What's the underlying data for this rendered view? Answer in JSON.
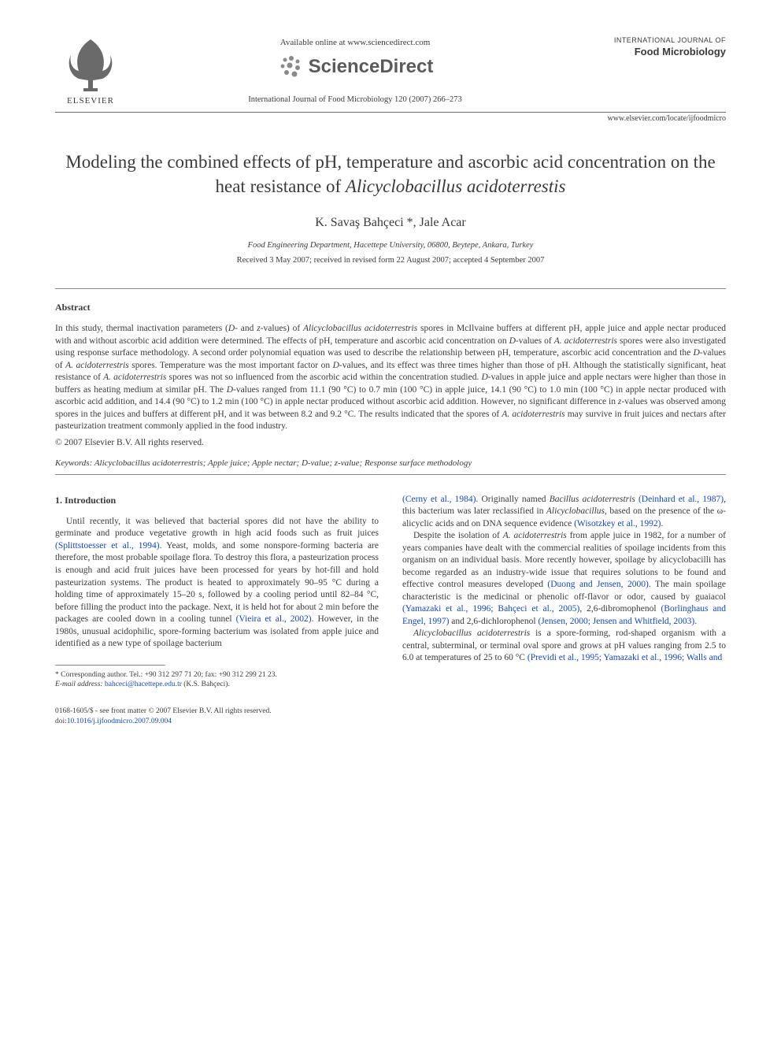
{
  "header": {
    "elsevier_label": "ELSEVIER",
    "available_online": "Available online at www.sciencedirect.com",
    "scidir_text": "ScienceDirect",
    "journal_ref": "International Journal of Food Microbiology 120 (2007) 266–273",
    "journal_brand_line1": "INTERNATIONAL JOURNAL OF",
    "journal_brand_line2": "Food Microbiology",
    "locate_link": "www.elsevier.com/locate/ijfoodmicro"
  },
  "title_html": "Modeling the combined effects of pH, temperature and ascorbic acid concentration on the heat resistance of <em>Alicyclobacillus acidoterrestis</em>",
  "authors": "K. Savaş Bahçeci *, Jale Acar",
  "affiliation": "Food Engineering Department, Hacettepe University, 06800, Beytepe, Ankara, Turkey",
  "dates": "Received 3 May 2007; received in revised form 22 August 2007; accepted 4 September 2007",
  "abstract": {
    "heading": "Abstract",
    "body_html": "In this study, thermal inactivation parameters (<em>D</em>- and <em>z</em>-values) of <em>Alicyclobacillus acidoterrestris</em> spores in McIlvaine buffers at different pH, apple juice and apple nectar produced with and without ascorbic acid addition were determined. The effects of pH, temperature and ascorbic acid concentration on <em>D</em>-values of <em>A. acidoterrestris</em> spores were also investigated using response surface methodology. A second order polynomial equation was used to describe the relationship between pH, temperature, ascorbic acid concentration and the <em>D</em>-values of <em>A. acidoterrestris</em> spores. Temperature was the most important factor on <em>D</em>-values, and its effect was three times higher than those of pH. Although the statistically significant, heat resistance of <em>A. acidoterrestris</em> spores was not so influenced from the ascorbic acid within the concentration studied. <em>D</em>-values in apple juice and apple nectars were higher than those in buffers as heating medium at similar pH. The <em>D</em>-values ranged from 11.1 (90 °C) to 0.7 min (100 °C) in apple juice, 14.1 (90 °C) to 1.0 min (100 °C) in apple nectar produced with ascorbic acid addition, and 14.4 (90 °C) to 1.2 min (100 °C) in apple nectar produced without ascorbic acid addition. However, no significant difference in <em>z</em>-values was observed among spores in the juices and buffers at different pH, and it was between 8.2 and 9.2 °C. The results indicated that the spores of <em>A. acidoterrestris</em> may survive in fruit juices and nectars after pasteurization treatment commonly applied in the food industry.",
    "copyright": "© 2007 Elsevier B.V. All rights reserved.",
    "keywords_label": "Keywords:",
    "keywords_list": "Alicyclobacillus acidoterrestris; Apple juice; Apple nectar; D-value; z-value; Response surface methodology"
  },
  "intro": {
    "heading": "1. Introduction",
    "col1_p1_html": "Until recently, it was believed that bacterial spores did not have the ability to germinate and produce vegetative growth in high acid foods such as fruit juices <span class=\"ref-link\">(Splittstoesser et al., 1994)</span>. Yeast, molds, and some nonspore-forming bacteria are therefore, the most probable spoilage flora. To destroy this flora, a pasteurization process is enough and acid fruit juices have been processed for years by hot-fill and hold pasteurization systems. The product is heated to approximately 90–95 °C during a holding time of approximately 15–20 s, followed by a cooling period until 82–84 °C, before filling the product into the package. Next, it is held hot for about 2 min before the packages are cooled down in a cooling tunnel <span class=\"ref-link\">(Vieira et al., 2002)</span>. However, in the 1980s, unusual acidophilic, spore-forming bacterium was isolated from apple juice and identified as a new type of spoilage bacterium",
    "col2_p1_html": "<span class=\"ref-link\">(Cerny et al., 1984)</span>. Originally named <em>Bacillus acidoterrestris</em> <span class=\"ref-link\">(Deinhard et al., 1987)</span>, this bacterium was later reclassified in <em>Alicyclobacillus</em>, based on the presence of the ω-alicyclic acids and on DNA sequence evidence <span class=\"ref-link\">(Wisotzkey et al., 1992)</span>.",
    "col2_p2_html": "Despite the isolation of <em>A. acidoterrestris</em> from apple juice in 1982, for a number of years companies have dealt with the commercial realities of spoilage incidents from this organism on an individual basis. More recently however, spoilage by alicyclobacilli has become regarded as an industry-wide issue that requires solutions to be found and effective control measures developed <span class=\"ref-link\">(Duong and Jensen, 2000)</span>. The main spoilage characteristic is the medicinal or phenolic off-flavor or odor, caused by guaiacol <span class=\"ref-link\">(Yamazaki et al., 1996; Bahçeci et al., 2005)</span>, 2,6-dibromophenol <span class=\"ref-link\">(Borlinghaus and Engel, 1997)</span> and 2,6-dichlorophenol <span class=\"ref-link\">(Jensen, 2000; Jensen and Whitfield, 2003)</span>.",
    "col2_p3_html": "<em>Alicyclobacillus acidoterrestris</em> is a spore-forming, rod-shaped organism with a central, subterminal, or terminal oval spore and grows at pH values ranging from 2.5 to 6.0 at temperatures of 25 to 60 °C <span class=\"ref-link\">(Previdi et al., 1995; Yamazaki et al., 1996; Walls and</span>"
  },
  "footnote": {
    "corresponding": "* Corresponding author. Tel.: +90 312 297 71 20; fax: +90 312 299 21 23.",
    "email_label": "E-mail address:",
    "email": "bahceci@hacettepe.edu.tr",
    "email_suffix": "(K.S. Bahçeci)."
  },
  "bottom": {
    "front_matter": "0168-1605/$ - see front matter © 2007 Elsevier B.V. All rights reserved.",
    "doi_label": "doi:",
    "doi": "10.1016/j.ijfoodmicro.2007.09.004"
  },
  "colors": {
    "text": "#3a3a3a",
    "link": "#1446c8",
    "rule": "#888888"
  }
}
